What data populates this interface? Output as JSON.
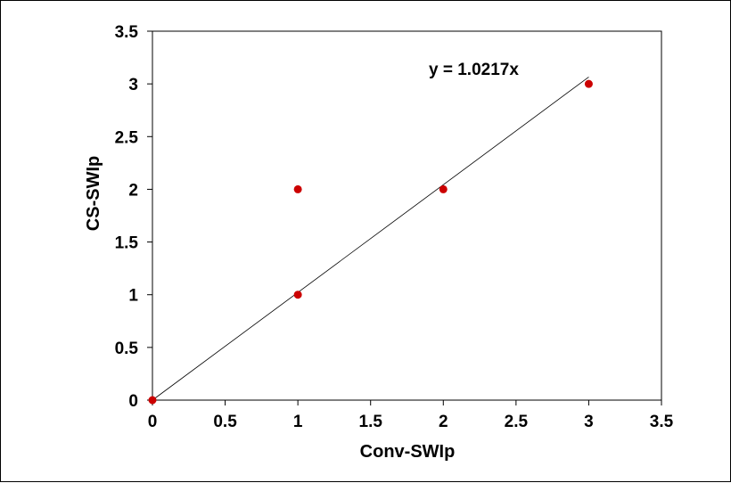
{
  "chart_data": {
    "type": "scatter",
    "title": "",
    "xlabel": "Conv-SWIp",
    "ylabel": "CS-SWIp",
    "xlim": [
      0,
      3.5
    ],
    "ylim": [
      0,
      3.5
    ],
    "x_ticks": [
      "0",
      "0.5",
      "1",
      "1.5",
      "2",
      "2.5",
      "3",
      "3.5"
    ],
    "y_ticks": [
      "0",
      "0.5",
      "1",
      "1.5",
      "2",
      "2.5",
      "3",
      "3.5"
    ],
    "grid": false,
    "legend": "none",
    "series": [
      {
        "x": [
          0,
          1,
          1,
          2,
          3
        ],
        "y": [
          0,
          1,
          2,
          2,
          3
        ],
        "color": "#cc0000"
      }
    ],
    "trendline": {
      "equation": "y = 1.0217x",
      "slope": 1.0217,
      "x_range": [
        0,
        3
      ],
      "color": "#000000"
    }
  }
}
